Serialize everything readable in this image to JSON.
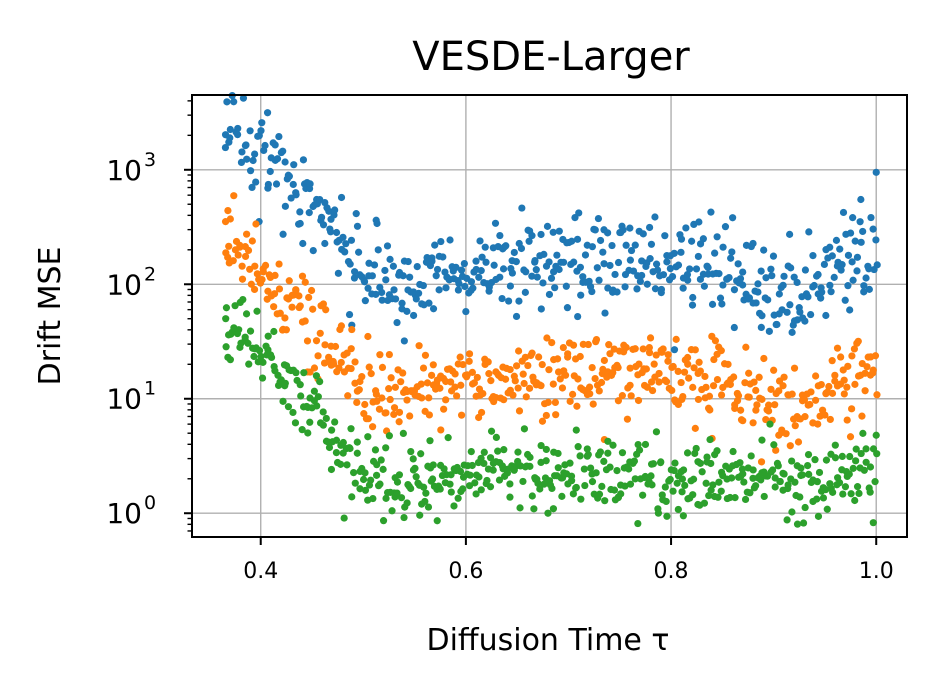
{
  "chart_data": {
    "type": "scatter",
    "title": "VESDE-Larger",
    "xlabel": "Diffusion Time τ",
    "ylabel": "Drift MSE",
    "xscale": "linear",
    "yscale": "log",
    "xlim": [
      0.333,
      1.03
    ],
    "ylim": [
      0.62,
      4500
    ],
    "grid": true,
    "xticks": [
      {
        "value": 0.4,
        "label": "0.4"
      },
      {
        "value": 0.6,
        "label": "0.6"
      },
      {
        "value": 0.8,
        "label": "0.8"
      },
      {
        "value": 1.0,
        "label": "1.0"
      }
    ],
    "yticks": [
      {
        "value": 1,
        "base": "10",
        "exp": "0"
      },
      {
        "value": 10,
        "base": "10",
        "exp": "1"
      },
      {
        "value": 100,
        "base": "10",
        "exp": "2"
      },
      {
        "value": 1000,
        "base": "10",
        "exp": "3"
      }
    ],
    "series": [
      {
        "name": "series-blue",
        "color": "#1f77b4",
        "n_points": 500,
        "x_range": [
          0.365,
          1.0
        ],
        "trend": [
          [
            0.365,
            2400
          ],
          [
            0.38,
            2100
          ],
          [
            0.4,
            1400
          ],
          [
            0.42,
            900
          ],
          [
            0.44,
            650
          ],
          [
            0.46,
            380
          ],
          [
            0.48,
            230
          ],
          [
            0.5,
            150
          ],
          [
            0.52,
            95
          ],
          [
            0.55,
            100
          ],
          [
            0.58,
            115
          ],
          [
            0.6,
            130
          ],
          [
            0.65,
            150
          ],
          [
            0.7,
            165
          ],
          [
            0.75,
            150
          ],
          [
            0.8,
            150
          ],
          [
            0.85,
            125
          ],
          [
            0.9,
            80
          ],
          [
            0.93,
            85
          ],
          [
            0.96,
            120
          ],
          [
            0.98,
            180
          ],
          [
            1.0,
            240
          ]
        ],
        "spread": 0.2,
        "outliers": [
          [
            0.54,
            32
          ],
          [
            0.71,
            420
          ],
          [
            0.918,
            38
          ],
          [
            1.0,
            950
          ],
          [
            0.985,
            550
          ],
          [
            0.975,
            280
          ],
          [
            0.888,
            42
          ]
        ]
      },
      {
        "name": "series-orange",
        "color": "#ff7f0e",
        "n_points": 500,
        "x_range": [
          0.365,
          1.0
        ],
        "trend": [
          [
            0.365,
            280
          ],
          [
            0.38,
            210
          ],
          [
            0.4,
            135
          ],
          [
            0.42,
            85
          ],
          [
            0.44,
            55
          ],
          [
            0.46,
            32
          ],
          [
            0.48,
            20
          ],
          [
            0.5,
            13
          ],
          [
            0.52,
            11.5
          ],
          [
            0.55,
            12
          ],
          [
            0.58,
            13
          ],
          [
            0.6,
            14
          ],
          [
            0.65,
            15.5
          ],
          [
            0.7,
            16
          ],
          [
            0.75,
            17
          ],
          [
            0.8,
            16
          ],
          [
            0.85,
            13
          ],
          [
            0.88,
            10
          ],
          [
            0.9,
            8.5
          ],
          [
            0.93,
            9
          ],
          [
            0.96,
            12
          ],
          [
            1.0,
            19
          ]
        ],
        "spread": 0.17,
        "outliers": [
          [
            0.368,
            440
          ],
          [
            0.78,
            34
          ],
          [
            0.805,
            33
          ],
          [
            0.695,
            28
          ],
          [
            0.84,
            4.5
          ],
          [
            0.905,
            4.8
          ],
          [
            0.735,
            4.4
          ]
        ]
      },
      {
        "name": "series-green",
        "color": "#2ca02c",
        "n_points": 500,
        "x_range": [
          0.365,
          1.0
        ],
        "trend": [
          [
            0.365,
            42
          ],
          [
            0.38,
            38
          ],
          [
            0.4,
            28
          ],
          [
            0.42,
            17
          ],
          [
            0.44,
            10
          ],
          [
            0.46,
            6
          ],
          [
            0.48,
            3.5
          ],
          [
            0.5,
            2.2
          ],
          [
            0.52,
            1.9
          ],
          [
            0.55,
            1.9
          ],
          [
            0.58,
            2.0
          ],
          [
            0.6,
            2.1
          ],
          [
            0.65,
            2.2
          ],
          [
            0.7,
            2.2
          ],
          [
            0.75,
            2.1
          ],
          [
            0.8,
            2.1
          ],
          [
            0.85,
            2.0
          ],
          [
            0.9,
            2.0
          ],
          [
            0.95,
            2.0
          ],
          [
            1.0,
            2.4
          ]
        ],
        "spread": 0.16,
        "outliers": [
          [
            0.368,
            23
          ],
          [
            0.375,
            65
          ],
          [
            0.68,
            1.0
          ],
          [
            0.812,
            0.95
          ],
          [
            0.555,
            0.96
          ],
          [
            0.565,
            4.3
          ],
          [
            0.625,
            5.2
          ],
          [
            0.838,
            4.4
          ],
          [
            1.0,
            4.8
          ]
        ]
      }
    ]
  }
}
